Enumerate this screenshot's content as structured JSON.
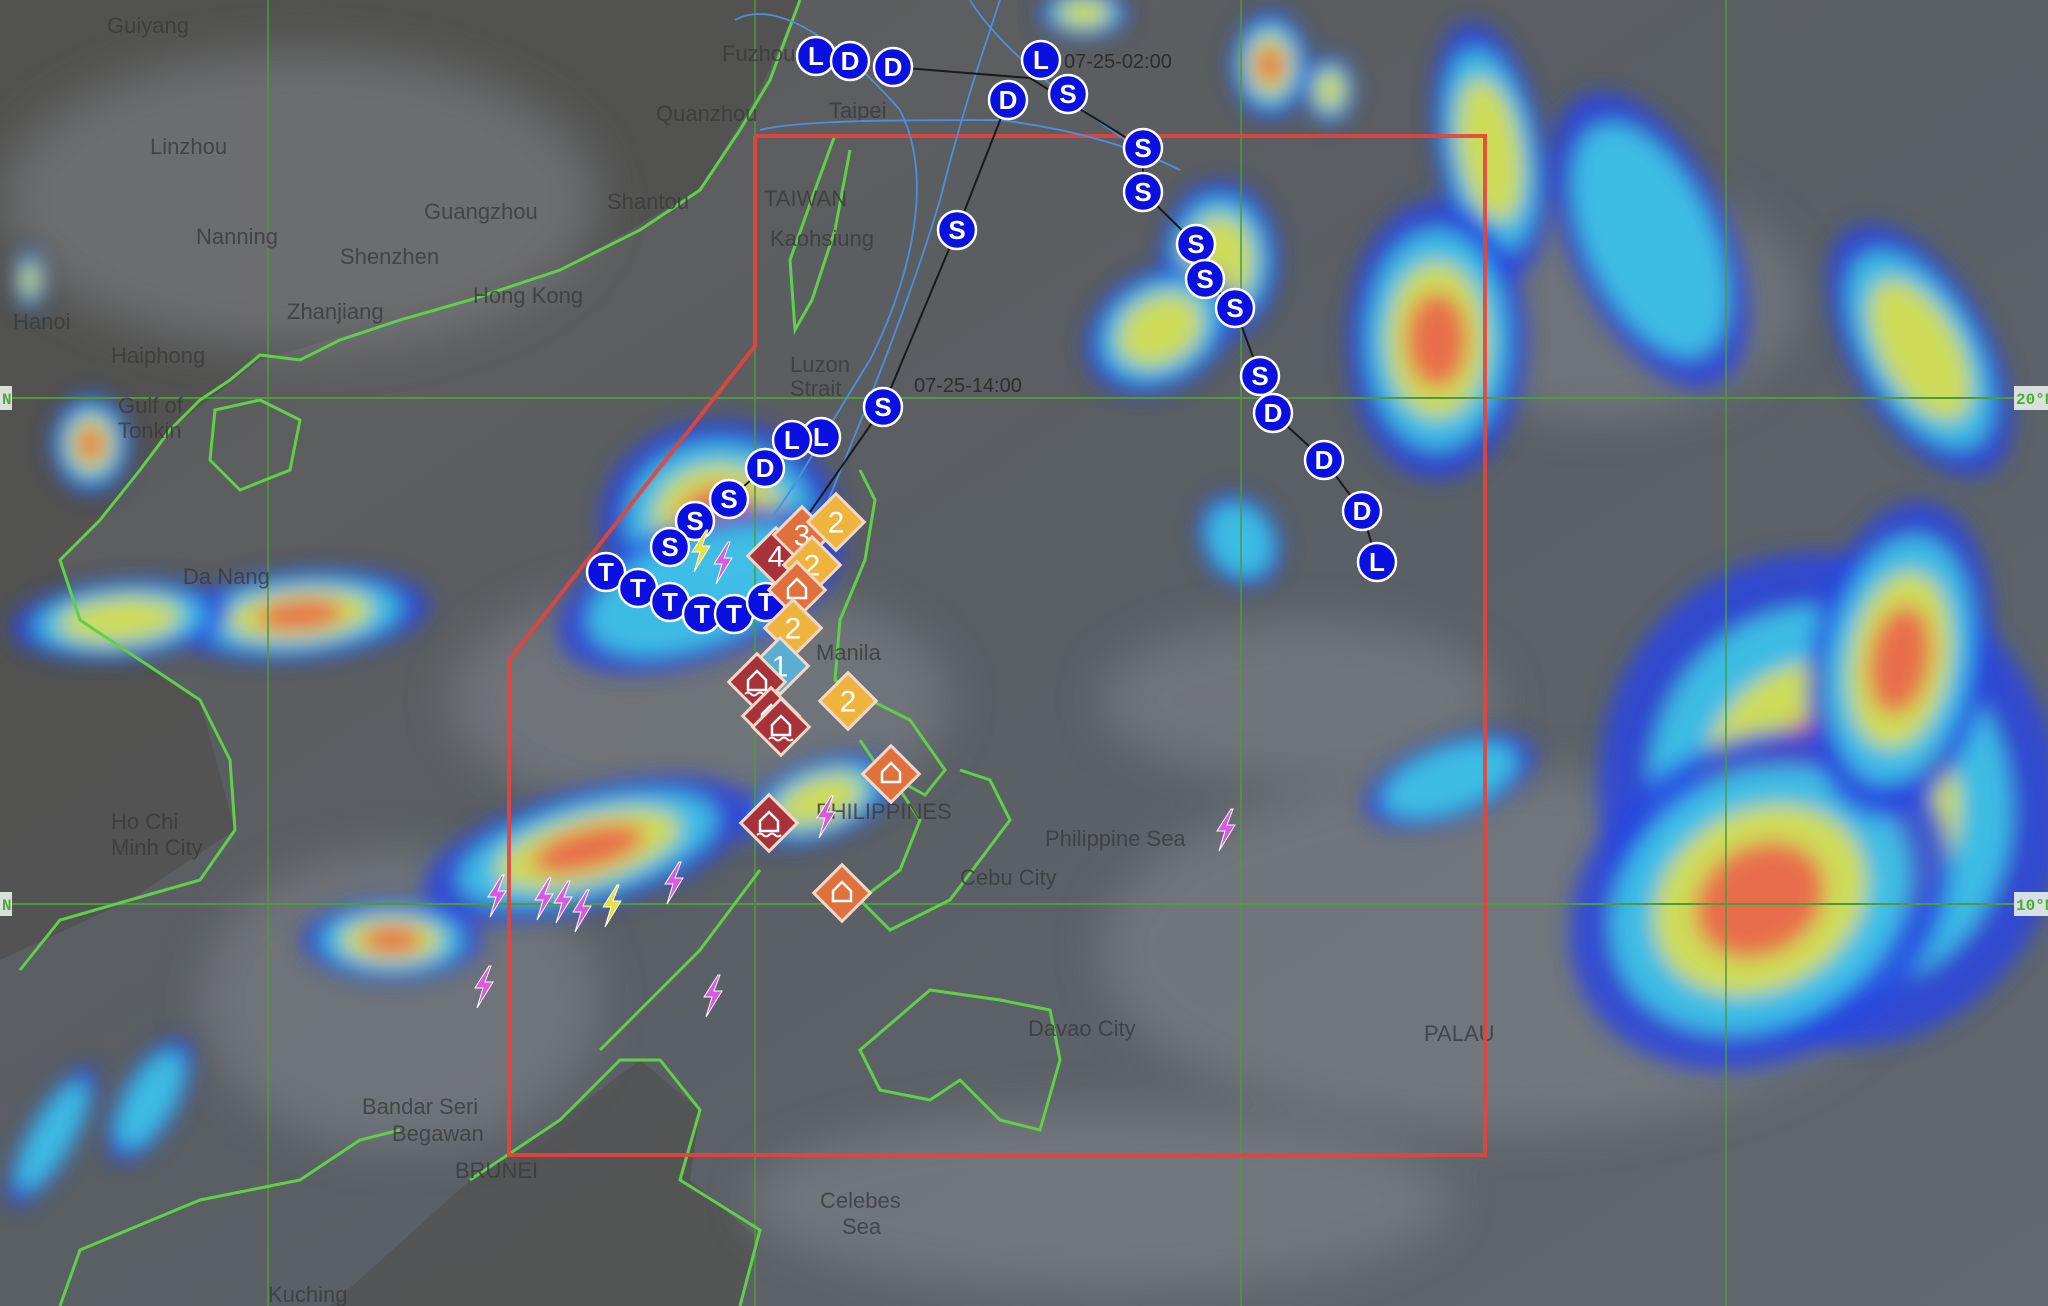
{
  "map": {
    "cities": [
      "Guiyang",
      "Linzhou",
      "Nanning",
      "Guangzhou",
      "Shenzhen",
      "Shantou",
      "Quanzhou",
      "Fuzhou",
      "Taipei",
      "TAIWAN",
      "Kaohsiung",
      "Hong Kong",
      "Zhanjiang",
      "Hanoi",
      "Haiphong",
      "Gulf of",
      "Tonkin",
      "Da Nang",
      "Ho Chi",
      "Minh City",
      "Manila",
      "PHILIPPINES",
      "Philippine Sea",
      "Cebu City",
      "Davao City",
      "PALAU",
      "Bandar Seri",
      "Begawan",
      "BRUNEI",
      "Celebes",
      "Sea",
      "Luzon",
      "Strait",
      "Kuching"
    ],
    "latitude_labels": [
      "20°N",
      "10°N",
      "N",
      "N"
    ],
    "colors": {
      "track": "#0a10e0",
      "warning_area": "#e8423a",
      "coastline": "#5fd048",
      "grid": "#4f9a3c",
      "cone": "#4a90e0"
    },
    "tracks": [
      {
        "points": [
          "L",
          "D",
          "D",
          "L",
          "S",
          "D",
          "S",
          "S",
          "S",
          "S",
          "S",
          "S",
          "D",
          "D",
          "D",
          "L"
        ],
        "time_label": "07-25-02:00"
      },
      {
        "points": [
          "S",
          "S"
        ],
        "time_label": "07-25-14:00"
      },
      {
        "points": [
          "L",
          "L",
          "D",
          "S",
          "S",
          "S",
          "T",
          "T",
          "T",
          "T",
          "T",
          "T"
        ]
      }
    ],
    "warnings": [
      {
        "type": "level",
        "level": "4",
        "color": "#a8323a"
      },
      {
        "type": "level",
        "level": "3",
        "color": "#e0703c"
      },
      {
        "type": "level",
        "level": "2",
        "color": "#eeb43e"
      },
      {
        "type": "level",
        "level": "2",
        "color": "#eeb43e"
      },
      {
        "type": "house-icon",
        "color": "#e0703c"
      },
      {
        "type": "level",
        "level": "2",
        "color": "#eeb43e"
      },
      {
        "type": "level",
        "level": "1",
        "color": "#5aaed0"
      },
      {
        "type": "flood-icon",
        "color": "#a8323a"
      },
      {
        "type": "flood-icon",
        "color": "#a8323a"
      },
      {
        "type": "flood-icon",
        "color": "#a8323a"
      },
      {
        "type": "level",
        "level": "2",
        "color": "#eeb43e"
      },
      {
        "type": "house-icon",
        "color": "#e0703c"
      },
      {
        "type": "flood-icon",
        "color": "#a8323a"
      },
      {
        "type": "house-icon",
        "color": "#e0703c"
      }
    ],
    "lightning_icon": "lightning-bolt-icon"
  }
}
